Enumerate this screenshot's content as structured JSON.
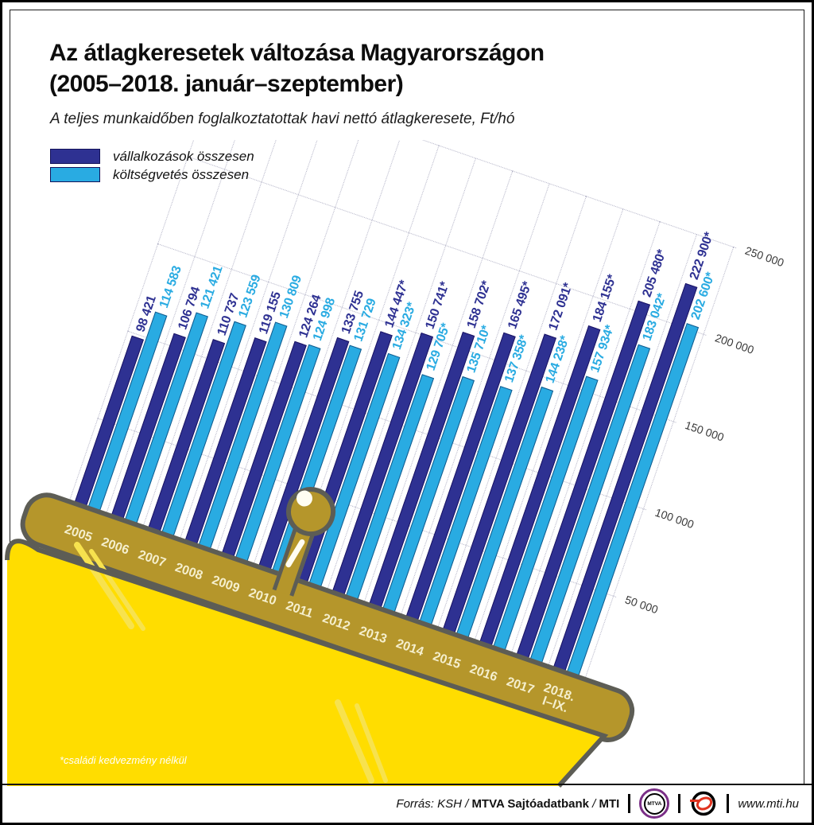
{
  "title": {
    "line1": "Az átlagkeresetek változása Magyarországon",
    "line2": "(2005–2018. január–szeptember)"
  },
  "subtitle": "A teljes munkaidőben foglalkoztatottak havi nettó átlagkeresete, Ft/hó",
  "legend": [
    {
      "label": "vállalkozások összesen",
      "color": "#2e3192"
    },
    {
      "label": "költségvetés összesen",
      "color": "#29abe2"
    }
  ],
  "footnote": "*családi kedvezmény nélkül",
  "footer": {
    "source_italic": "Forrás: KSH /",
    "source_agency": "MTVA Sajtóadatbank",
    "source_slash": "/",
    "source_brand": "MTI",
    "mtva_logo_text": "MTVA",
    "website": "www.mti.hu"
  },
  "colors": {
    "bar_dark": "#2e3192",
    "bar_dark_border": "#1b1464",
    "bar_light": "#29abe2",
    "bar_light_border": "#145a8c",
    "purse_yellow": "#ffdd00",
    "purse_gold": "#b5962b",
    "purse_outline": "#5d5d55",
    "gridline": "#b2b2c6",
    "year_text": "#f5efcd"
  },
  "chart_data": {
    "type": "bar",
    "title": "Az átlagkeresetek változása Magyarországon (2005–2018. január–szeptember)",
    "subtitle": "A teljes munkaidőben foglalkoztatottak havi nettó átlagkeresete, Ft/hó",
    "categories": [
      "2005",
      "2006",
      "2007",
      "2008",
      "2009",
      "2010",
      "2011",
      "2012",
      "2013",
      "2014",
      "2015",
      "2016",
      "2017",
      "2018.\nI–IX."
    ],
    "series": [
      {
        "name": "vállalkozások összesen",
        "color": "#2e3192",
        "border": "#1b1464",
        "values": [
          98421,
          106794,
          110737,
          119155,
          124264,
          133755,
          144447,
          150741,
          158702,
          165495,
          172091,
          184155,
          205480,
          222900
        ],
        "labels": [
          "98 421",
          "106 794",
          "110 737",
          "119 155",
          "124 264",
          "133 755",
          "144 447*",
          "150 741*",
          "158 702*",
          "165 495*",
          "172 091*",
          "184 155*",
          "205 480*",
          "222 900*"
        ]
      },
      {
        "name": "költségvetés összesen",
        "color": "#29abe2",
        "border": "#145a8c",
        "values": [
          114583,
          121421,
          123559,
          130809,
          124998,
          131729,
          134323,
          129705,
          135710,
          137358,
          144238,
          157934,
          183042,
          202600
        ],
        "labels": [
          "114 583",
          "121 421",
          "123 559",
          "130 809",
          "124 998",
          "131 729",
          "134 323*",
          "129 705*",
          "135 710*",
          "137 358*",
          "144 238*",
          "157 934*",
          "183 042*",
          "202 600*"
        ]
      }
    ],
    "ylim": [
      0,
      250000
    ],
    "yticks": [
      50000,
      100000,
      150000,
      200000,
      250000
    ],
    "ytick_labels": [
      "50 000",
      "100 000",
      "150 000",
      "200 000",
      "250 000"
    ],
    "grid": "dotted",
    "legend_position": "top-left",
    "rotation_deg": 19,
    "footnote": "*családi kedvezmény nélkül"
  }
}
